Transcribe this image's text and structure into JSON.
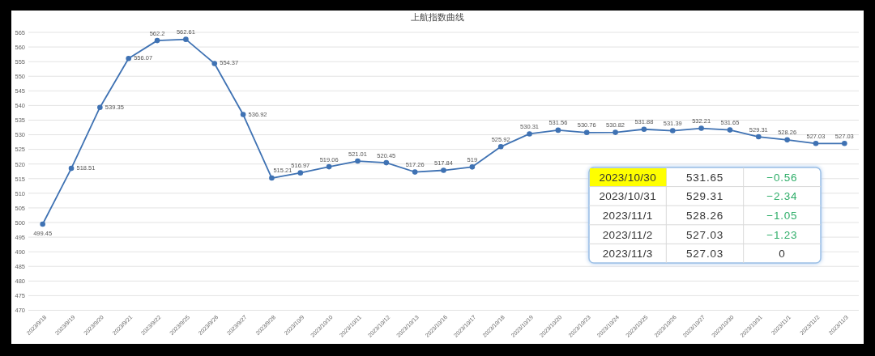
{
  "chart_data": [
    {
      "type": "line",
      "title": "上航指数曲线",
      "categories": [
        "2023/9/18",
        "2023/9/19",
        "2023/9/20",
        "2023/9/21",
        "2023/9/22",
        "2023/9/25",
        "2023/9/26",
        "2023/9/27",
        "2023/9/28",
        "2023/10/9",
        "2023/10/10",
        "2023/10/11",
        "2023/10/12",
        "2023/10/13",
        "2023/10/16",
        "2023/10/17",
        "2023/10/18",
        "2023/10/19",
        "2023/10/20",
        "2023/10/23",
        "2023/10/24",
        "2023/10/25",
        "2023/10/26",
        "2023/10/27",
        "2023/10/30",
        "2023/10/31",
        "2023/11/1",
        "2023/11/2",
        "2023/11/3"
      ],
      "values": [
        499.45,
        518.51,
        539.35,
        556.07,
        562.2,
        562.61,
        554.37,
        536.92,
        515.21,
        516.97,
        519.06,
        521.01,
        520.45,
        517.26,
        517.84,
        519,
        525.92,
        530.31,
        531.56,
        530.76,
        530.82,
        531.88,
        531.39,
        532.21,
        531.65,
        529.31,
        528.26,
        527.03,
        527.03
      ],
      "color": "#3f72b3",
      "ylim": [
        470,
        565
      ],
      "yticks": [
        470,
        475,
        480,
        485,
        490,
        495,
        500,
        505,
        510,
        515,
        520,
        525,
        530,
        535,
        540,
        545,
        550,
        555,
        560,
        565
      ],
      "grid": "y",
      "marker": "circle",
      "data_labels": true
    },
    {
      "type": "other",
      "categories": [
        "2023/10/30",
        "2023/10/31",
        "2023/11/1",
        "2023/11/2",
        "2023/11/3"
      ],
      "colors": [
        "#ffff00",
        null,
        null,
        null,
        null
      ],
      "series": [
        {
          "values": [
            531.65,
            529.31,
            528.26,
            527.03,
            527.03
          ]
        },
        {
          "values": [
            -0.56,
            -2.34,
            -1.05,
            -1.23,
            0
          ],
          "colors": [
            "#2fae69",
            "#2fae69",
            "#2fae69",
            "#2fae69",
            "#333333"
          ]
        }
      ],
      "data_labels": true
    }
  ]
}
